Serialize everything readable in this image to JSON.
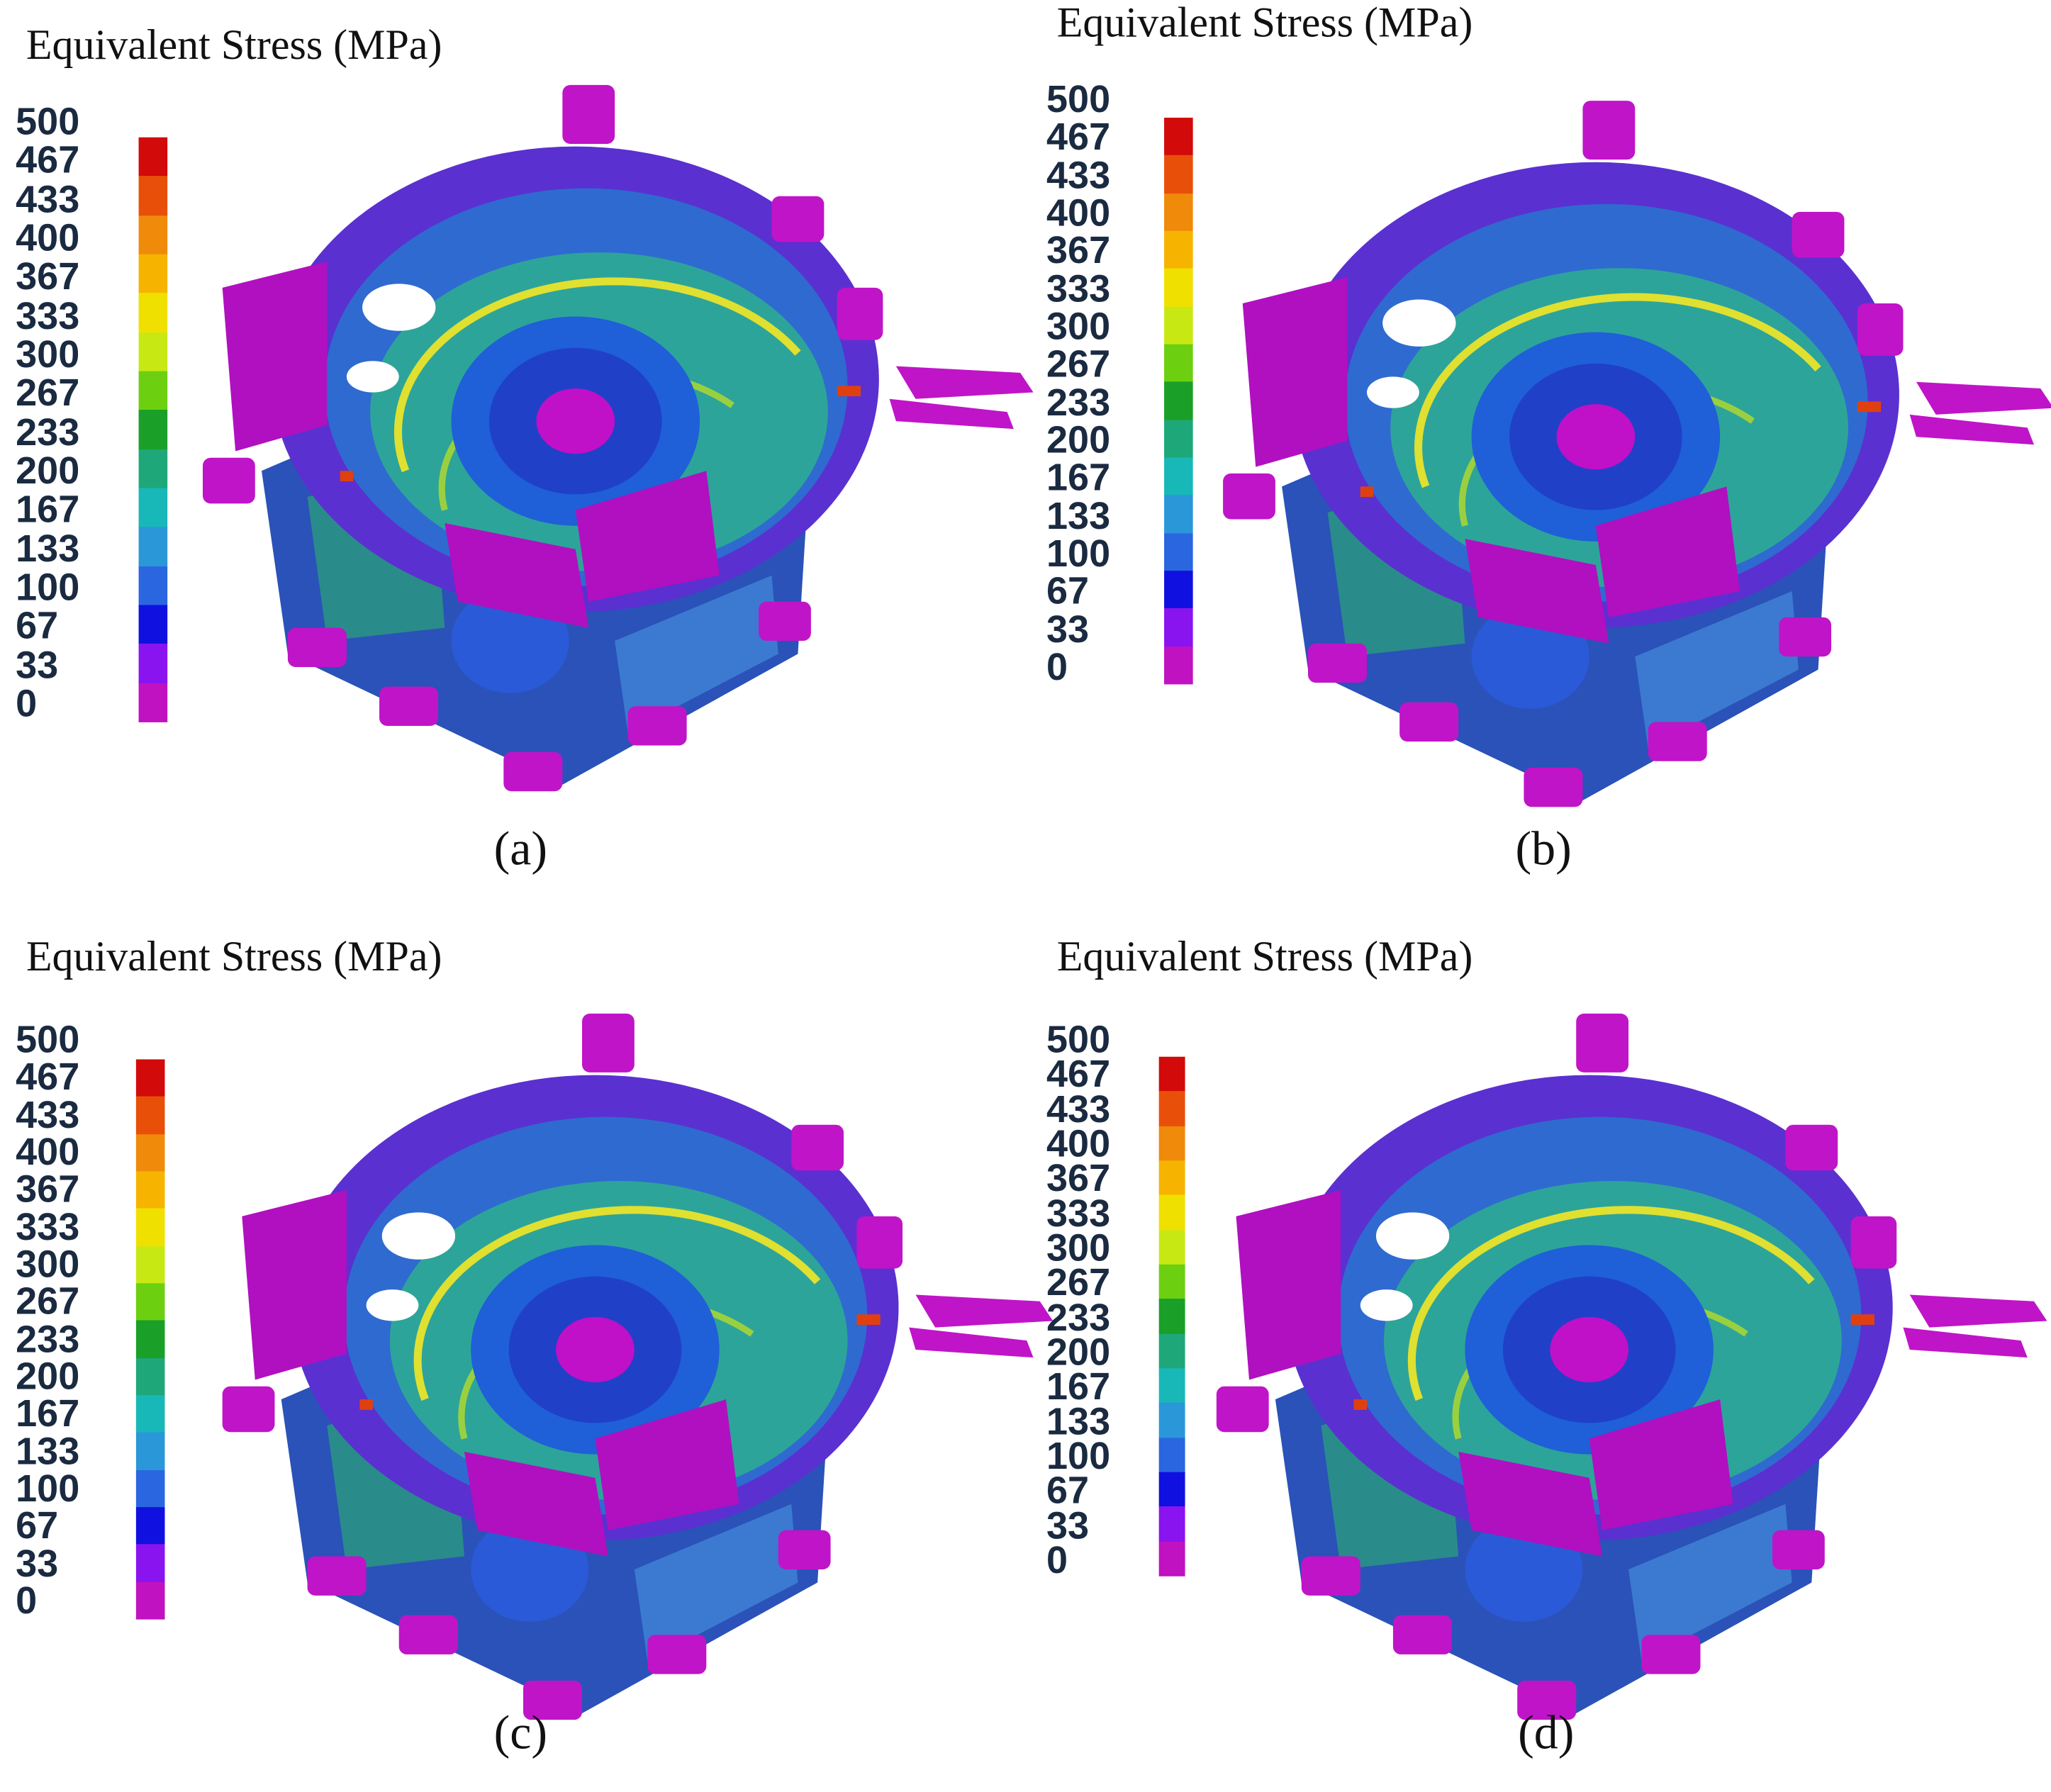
{
  "colorbar_colors": [
    "#d20a0a",
    "#e8500a",
    "#f08a0a",
    "#f6b400",
    "#f0e000",
    "#c8e814",
    "#6cd010",
    "#1aa028",
    "#1ea87a",
    "#18b8b8",
    "#2a98d8",
    "#2a66e0",
    "#1010e0",
    "#8a14f0",
    "#c012c0"
  ],
  "panels": [
    {
      "title": "Equivalent Stress (MPa)",
      "ticks": [
        500,
        467,
        433,
        400,
        367,
        333,
        300,
        267,
        233,
        200,
        167,
        133,
        100,
        67,
        33,
        0
      ],
      "caption": "(a)"
    },
    {
      "title": "Equivalent Stress (MPa)",
      "ticks": [
        500,
        467,
        433,
        400,
        367,
        333,
        300,
        267,
        233,
        200,
        167,
        133,
        100,
        67,
        33,
        0
      ],
      "caption": "(b)"
    },
    {
      "title": "Equivalent Stress (MPa)",
      "ticks": [
        500,
        467,
        433,
        400,
        367,
        333,
        300,
        267,
        233,
        200,
        167,
        133,
        100,
        67,
        33,
        0
      ],
      "caption": "(c)"
    },
    {
      "title": "Equivalent Stress (MPa)",
      "ticks": [
        500,
        467,
        433,
        400,
        367,
        333,
        300,
        267,
        233,
        200,
        167,
        133,
        100,
        67,
        33,
        0
      ],
      "caption": "(d)"
    }
  ]
}
